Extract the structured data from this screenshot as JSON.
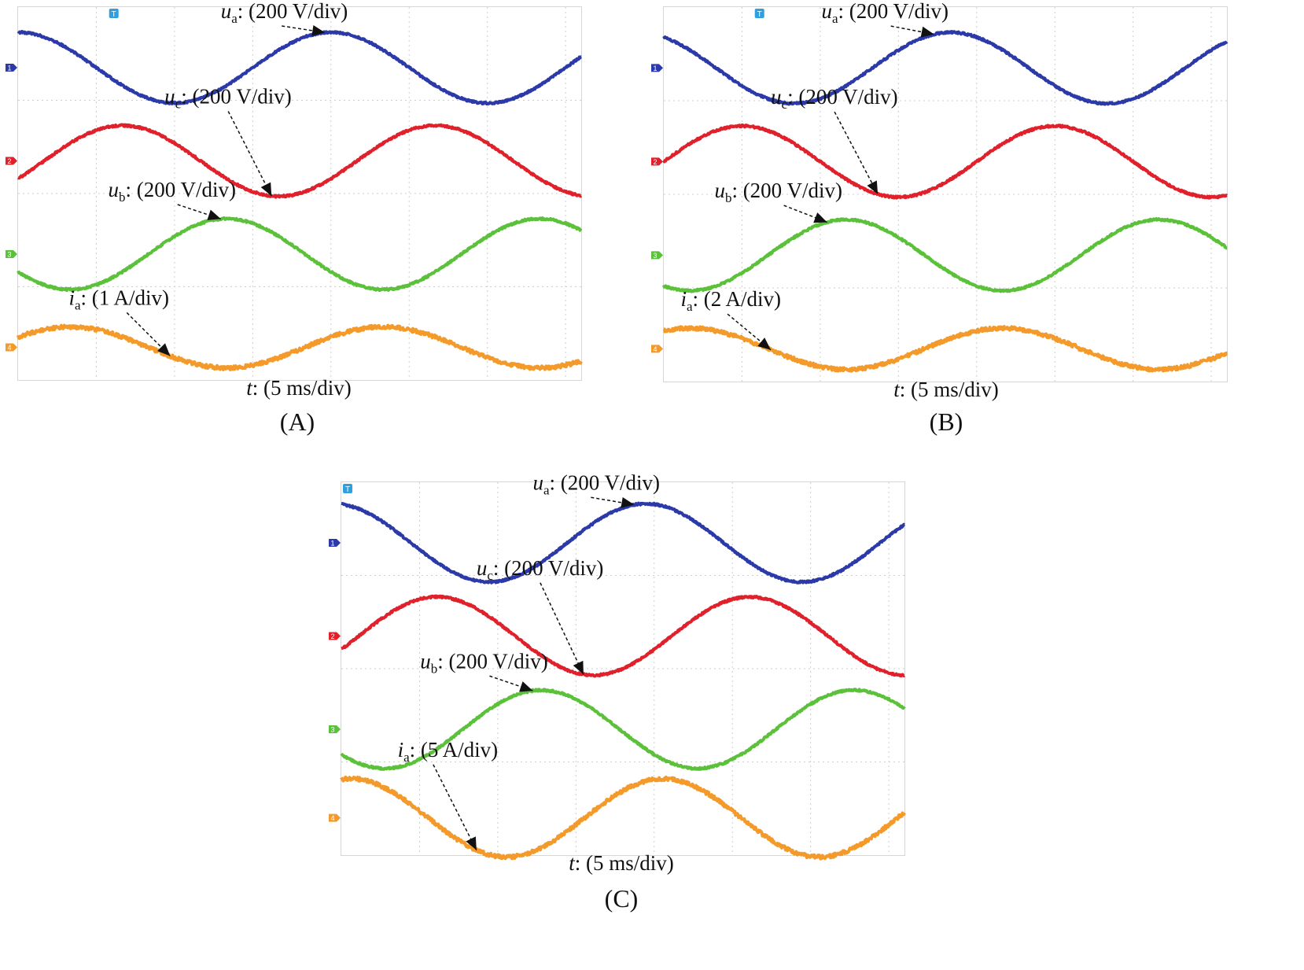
{
  "chart_data": [
    {
      "type": "line",
      "panel_label": "(A)",
      "xlabel_var": "t",
      "xlabel_rest": ": (5 ms/div)",
      "trigger_marker": "T",
      "grid": true,
      "series": [
        {
          "name": "ua",
          "var": "u",
          "sub": "a",
          "scale": ": (200 V/div)",
          "channel": "1",
          "color": "#2b3aa8",
          "phase_deg": 90,
          "amplitude_div": 0.38,
          "offset_div": 3.35
        },
        {
          "name": "uc",
          "var": "u",
          "sub": "c",
          "scale": ": (200 V/div)",
          "channel": "2",
          "color": "#e0202a",
          "phase_deg": -30,
          "amplitude_div": 0.38,
          "offset_div": 2.35
        },
        {
          "name": "ub",
          "var": "u",
          "sub": "b",
          "scale": ": (200 V/div)",
          "channel": "3",
          "color": "#5cc13a",
          "phase_deg": 210,
          "amplitude_div": 0.38,
          "offset_div": 1.35
        },
        {
          "name": "ia",
          "var": "i",
          "sub": "a",
          "scale": ": (1 A/div)",
          "channel": "4",
          "color": "#f39a2b",
          "phase_deg": 30,
          "amplitude_div": 0.22,
          "offset_div": 0.35
        }
      ],
      "period_ms": 20,
      "x_div_ms": 5,
      "x_range_div": [
        0,
        7.2
      ]
    },
    {
      "type": "line",
      "panel_label": "(B)",
      "xlabel_var": "t",
      "xlabel_rest": ": (5 ms/div)",
      "trigger_marker": "T",
      "grid": true,
      "series": [
        {
          "name": "ua",
          "var": "u",
          "sub": "a",
          "scale": ": (200 V/div)",
          "channel": "1",
          "color": "#2b3aa8",
          "phase_deg": 120,
          "amplitude_div": 0.38,
          "offset_div": 3.35
        },
        {
          "name": "uc",
          "var": "u",
          "sub": "c",
          "scale": ": (200 V/div)",
          "channel": "2",
          "color": "#e0202a",
          "phase_deg": 0,
          "amplitude_div": 0.38,
          "offset_div": 2.35
        },
        {
          "name": "ub",
          "var": "u",
          "sub": "b",
          "scale": ": (200 V/div)",
          "channel": "3",
          "color": "#5cc13a",
          "phase_deg": 240,
          "amplitude_div": 0.38,
          "offset_div": 1.35
        },
        {
          "name": "ia",
          "var": "i",
          "sub": "a",
          "scale": ": (2 A/div)",
          "channel": "4",
          "color": "#f39a2b",
          "phase_deg": 60,
          "amplitude_div": 0.22,
          "offset_div": 0.35
        }
      ],
      "period_ms": 20,
      "x_div_ms": 5,
      "x_range_div": [
        0,
        7.2
      ]
    },
    {
      "type": "line",
      "panel_label": "(C)",
      "xlabel_var": "t",
      "xlabel_rest": ": (5 ms/div)",
      "trigger_marker": "T",
      "grid": true,
      "series": [
        {
          "name": "ua",
          "var": "u",
          "sub": "a",
          "scale": ": (200 V/div)",
          "channel": "1",
          "color": "#2b3aa8",
          "phase_deg": 100,
          "amplitude_div": 0.42,
          "offset_div": 3.35
        },
        {
          "name": "uc",
          "var": "u",
          "sub": "c",
          "scale": ": (200 V/div)",
          "channel": "2",
          "color": "#e0202a",
          "phase_deg": -20,
          "amplitude_div": 0.42,
          "offset_div": 2.35
        },
        {
          "name": "ub",
          "var": "u",
          "sub": "b",
          "scale": ": (200 V/div)",
          "channel": "3",
          "color": "#5cc13a",
          "phase_deg": 220,
          "amplitude_div": 0.42,
          "offset_div": 1.35
        },
        {
          "name": "ia",
          "var": "i",
          "sub": "a",
          "scale": ": (5 A/div)",
          "channel": "4",
          "color": "#f39a2b",
          "phase_deg": 80,
          "amplitude_div": 0.42,
          "offset_div": 0.4
        }
      ],
      "period_ms": 20,
      "x_div_ms": 5,
      "x_range_div": [
        0,
        7.2
      ]
    }
  ]
}
